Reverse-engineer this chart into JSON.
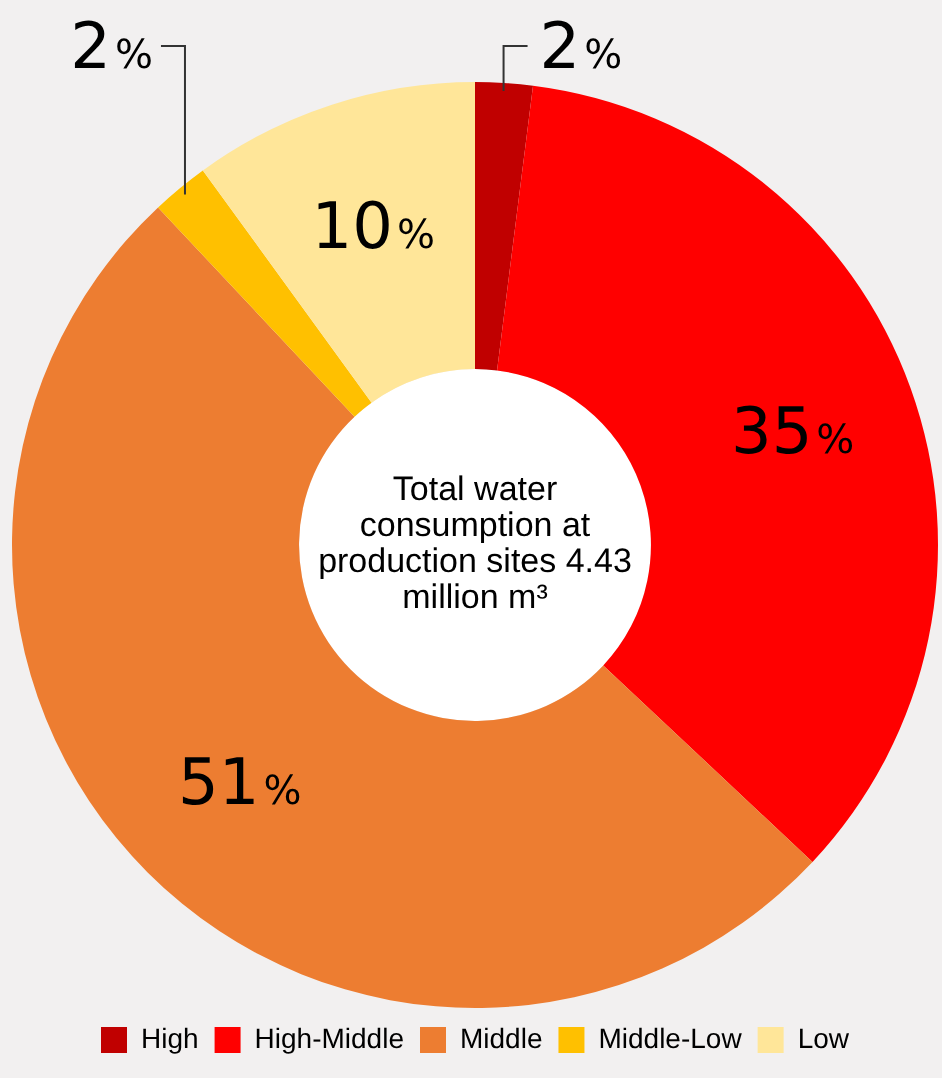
{
  "chart_data": {
    "type": "donut",
    "categories": [
      "High",
      "High-Middle",
      "Middle",
      "Middle-Low",
      "Low"
    ],
    "values": [
      2,
      35,
      51,
      2,
      10
    ],
    "value_labels": [
      "2%",
      "35%",
      "51%",
      "2%",
      "10%"
    ],
    "colors": [
      "#c00000",
      "#ff0000",
      "#ed7d31",
      "#ffc000",
      "#ffe699"
    ],
    "annotations": [
      "Total water consumption at production sites 4.43 million m³"
    ],
    "legend": "bottom"
  }
}
